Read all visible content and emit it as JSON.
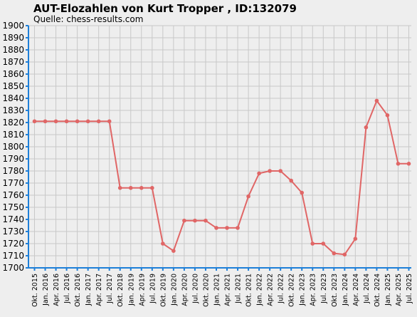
{
  "chart_data": {
    "type": "line",
    "title": "AUT-Elozahlen von Kurt Tropper , ID:132079",
    "subtitle": "Quelle: chess-results.com",
    "xlabel": "",
    "ylabel": "",
    "ylim": [
      1700,
      1900
    ],
    "ytick_step": 10,
    "grid": true,
    "legend": "none",
    "line_color": "#e06666",
    "axis_color": "#1e7fd8",
    "x": [
      "Okt. 2015",
      "Jan. 2016",
      "Apr. 2016",
      "Jul. 2016",
      "Okt. 2016",
      "Jan. 2017",
      "Apr. 2017",
      "Jul. 2017",
      "Okt. 2018",
      "Jan. 2019",
      "Apr. 2019",
      "Jul. 2019",
      "Okt. 2019",
      "Jan. 2020",
      "Apr. 2020",
      "Jul. 2020",
      "Okt. 2020",
      "Jan. 2021",
      "Apr. 2021",
      "Jul. 2021",
      "Okt. 2021",
      "Jan. 2022",
      "Apr. 2022",
      "Jul. 2022",
      "Okt. 2022",
      "Jan. 2023",
      "Apr. 2023",
      "Jul. 2023",
      "Okt. 2023",
      "Jan. 2024",
      "Apr. 2024",
      "Jul. 2024",
      "Okt. 2024",
      "Jan. 2025",
      "Apr. 2025",
      "Jul. 2025"
    ],
    "series": [
      {
        "values": [
          1821,
          1821,
          1821,
          1821,
          1821,
          1821,
          1821,
          1821,
          1766,
          1766,
          1766,
          1766,
          1720,
          1714,
          1739,
          1739,
          1739,
          1733,
          1733,
          1733,
          1759,
          1778,
          1780,
          1780,
          1772,
          1762,
          1720,
          1720,
          1712,
          1711,
          1724,
          1816,
          1838,
          1826,
          1786,
          1786
        ]
      }
    ]
  }
}
